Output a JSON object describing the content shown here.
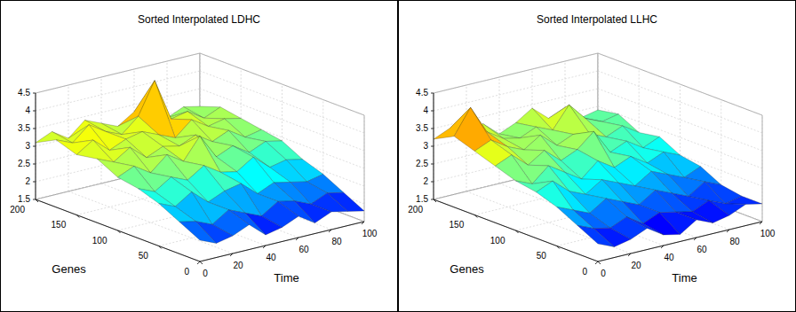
{
  "chart_data": [
    {
      "type": "surface",
      "title": "Sorted Interpolated LDHC",
      "xlabel": "Time",
      "ylabel": "Genes",
      "xlim": [
        0,
        100
      ],
      "ylim": [
        0,
        200
      ],
      "zlim": [
        1.5,
        4.5
      ],
      "xticks": [
        0,
        20,
        40,
        60,
        80,
        100
      ],
      "yticks": [
        0,
        50,
        100,
        150,
        200
      ],
      "zticks": [
        1.5,
        2,
        2.5,
        3,
        3.5,
        4,
        4.5
      ],
      "grid": true,
      "x": [
        0,
        10,
        20,
        30,
        40,
        50,
        60,
        70,
        80,
        90,
        100
      ],
      "y": [
        0,
        25,
        50,
        75,
        100,
        125,
        150,
        175,
        200
      ],
      "z": [
        [
          2.1,
          1.9,
          2.0,
          2.2,
          1.8,
          1.9,
          2.1,
          1.8,
          2.0,
          1.9,
          1.8
        ],
        [
          2.4,
          2.3,
          2.1,
          2.4,
          2.2,
          2.0,
          2.3,
          2.2,
          2.0,
          2.2,
          2.1
        ],
        [
          2.7,
          2.5,
          2.8,
          2.4,
          2.6,
          2.7,
          2.3,
          2.5,
          2.4,
          2.3,
          2.4
        ],
        [
          2.9,
          2.7,
          3.0,
          2.8,
          3.1,
          2.8,
          2.7,
          3.0,
          2.6,
          2.7,
          2.6
        ],
        [
          3.0,
          3.2,
          2.9,
          3.3,
          3.0,
          3.6,
          2.9,
          3.1,
          2.8,
          3.0,
          2.9
        ],
        [
          3.3,
          3.1,
          3.4,
          3.0,
          3.2,
          3.1,
          3.3,
          3.0,
          3.2,
          2.9,
          3.0
        ],
        [
          3.2,
          3.5,
          3.1,
          3.3,
          3.4,
          3.2,
          3.0,
          3.4,
          3.1,
          3.2,
          3.1
        ],
        [
          3.4,
          3.2,
          3.6,
          3.3,
          3.1,
          3.5,
          4.4,
          3.2,
          3.3,
          3.0,
          3.2
        ],
        [
          3.1,
          3.3,
          3.0,
          3.4,
          3.2,
          3.0,
          3.3,
          3.1,
          2.9,
          3.1,
          3.0
        ]
      ]
    },
    {
      "type": "surface",
      "title": "Sorted Interpolated LLHC",
      "xlabel": "Time",
      "ylabel": "Genes",
      "xlim": [
        0,
        100
      ],
      "ylim": [
        0,
        200
      ],
      "zlim": [
        1.5,
        4.5
      ],
      "xticks": [
        0,
        20,
        40,
        60,
        80,
        100
      ],
      "yticks": [
        0,
        50,
        100,
        150,
        200
      ],
      "zticks": [
        1.5,
        2,
        2.5,
        3,
        3.5,
        4,
        4.5
      ],
      "grid": true,
      "x": [
        0,
        10,
        20,
        30,
        40,
        50,
        60,
        70,
        80,
        90,
        100
      ],
      "y": [
        0,
        25,
        50,
        75,
        100,
        125,
        150,
        175,
        200
      ],
      "z": [
        [
          2.0,
          1.8,
          1.9,
          2.1,
          1.8,
          1.7,
          2.0,
          1.8,
          1.9,
          2.1,
          2.0
        ],
        [
          2.3,
          2.1,
          2.0,
          2.2,
          1.9,
          2.1,
          2.0,
          1.9,
          2.1,
          1.9,
          2.0
        ],
        [
          2.6,
          2.4,
          2.2,
          2.5,
          2.3,
          2.1,
          2.4,
          2.2,
          2.0,
          2.3,
          2.1
        ],
        [
          2.8,
          3.0,
          2.6,
          2.4,
          2.7,
          2.5,
          2.3,
          2.6,
          2.4,
          2.2,
          2.4
        ],
        [
          2.9,
          2.7,
          3.1,
          2.8,
          2.5,
          2.9,
          2.6,
          2.8,
          2.5,
          2.7,
          2.5
        ],
        [
          3.1,
          3.3,
          2.9,
          3.2,
          2.8,
          3.0,
          3.4,
          2.7,
          2.9,
          2.6,
          2.8
        ],
        [
          3.3,
          3.5,
          3.2,
          3.0,
          3.3,
          2.9,
          3.1,
          3.0,
          2.8,
          3.0,
          2.7
        ],
        [
          3.5,
          4.2,
          3.4,
          3.1,
          3.0,
          3.2,
          3.0,
          3.6,
          3.1,
          2.9,
          3.0
        ],
        [
          3.2,
          3.4,
          3.1,
          3.3,
          2.9,
          3.1,
          3.4,
          3.0,
          3.2,
          2.8,
          2.9
        ]
      ]
    }
  ]
}
